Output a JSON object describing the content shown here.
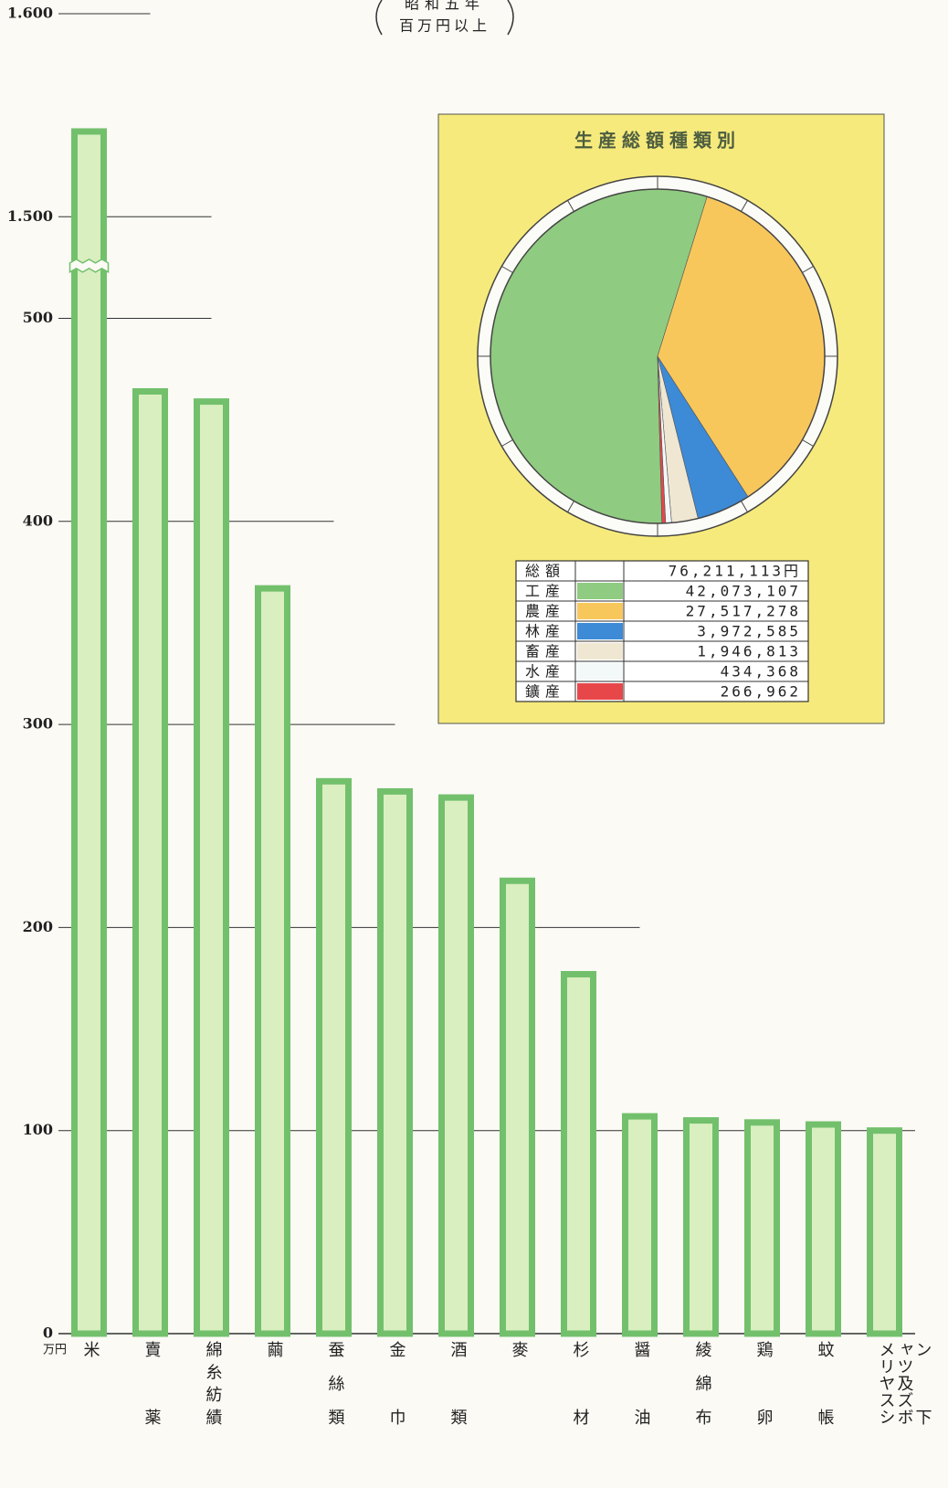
{
  "chart_data": [
    {
      "type": "bar",
      "subtitle": [
        "昭和五年",
        "百万円以上"
      ],
      "unit": "万円",
      "categories": [
        "米",
        "賣薬",
        "綿糸紡績",
        "繭",
        "蚕絲類",
        "金巾",
        "酒類",
        "麥",
        "杉材",
        "醤油",
        "綾綿布",
        "鶏卵",
        "蚊帳",
        "メリヤスシャツ及ズボン下"
      ],
      "values": [
        1542,
        464,
        459,
        367,
        272,
        267,
        264,
        223,
        177,
        107,
        105,
        104,
        103,
        100
      ],
      "color": "#72c06c",
      "fill": "#d9efc0",
      "ylim": [
        0,
        1600
      ],
      "axis_break": [
        525,
        1475
      ],
      "yticks": [
        0,
        100,
        200,
        300,
        400,
        500,
        {
          "value": 1500,
          "label": "1.500"
        },
        {
          "value": 1600,
          "label": "1.600"
        }
      ]
    },
    {
      "type": "pie",
      "title": "生産総額種類別",
      "total_label": "総額",
      "total": 76211113,
      "total_value_label": "76,211,113円",
      "categories": [
        "工産",
        "農産",
        "林産",
        "畜産",
        "水産",
        "鑛産"
      ],
      "values": [
        42073107,
        27517278,
        3972585,
        1946813,
        434368,
        266962
      ],
      "value_labels": [
        "42,073,107",
        "27,517,278",
        "3,972,585",
        "1,946,813",
        "434,368",
        "266,962"
      ],
      "colors": [
        "#8fcb80",
        "#f8c75c",
        "#3d8ad6",
        "#efe7d2",
        "#f3f8f8",
        "#e8474a"
      ]
    }
  ]
}
